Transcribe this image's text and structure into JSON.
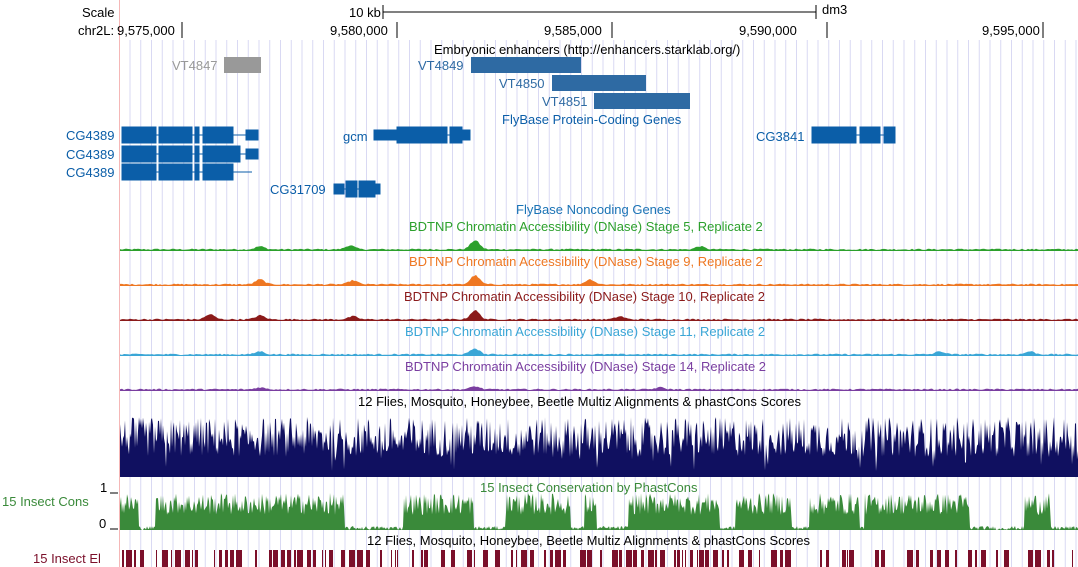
{
  "scale": {
    "label": "Scale",
    "bar_label": "10 kb",
    "assembly": "dm3",
    "chrom_label": "chr2L:",
    "positions": [
      "9,575,000",
      "9,580,000",
      "9,585,000",
      "9,590,000",
      "9,595,000"
    ]
  },
  "tracks": {
    "enhancers": {
      "title": "Embryonic enhancers (http://enhancers.starklab.org/)",
      "items": [
        "VT4847",
        "VT4849",
        "VT4850",
        "VT4851"
      ],
      "colors": {
        "gray": "#999999",
        "blue": "#2e6aa3"
      }
    },
    "protein_coding": {
      "title": "FlyBase Protein-Coding Genes",
      "color": "#0b5ea8",
      "genes": [
        "CG4389",
        "CG4389",
        "CG4389",
        "gcm",
        "CG31709",
        "CG3841"
      ]
    },
    "noncoding": {
      "title": "FlyBase Noncoding Genes",
      "color": "#1a73b5"
    },
    "dnase": [
      {
        "title": "BDTNP Chromatin Accessibility (DNase) Stage 5, Replicate 2",
        "color": "#2ca02c"
      },
      {
        "title": "BDTNP Chromatin Accessibility (DNase) Stage 9, Replicate 2",
        "color": "#ee7722"
      },
      {
        "title": "BDTNP Chromatin Accessibility (DNase) Stage 10, Replicate 2",
        "color": "#8b1a1a"
      },
      {
        "title": "BDTNP Chromatin Accessibility (DNase) Stage 11, Replicate 2",
        "color": "#3aa6d6"
      },
      {
        "title": "BDTNP Chromatin Accessibility (DNase) Stage 14, Replicate 2",
        "color": "#7a3ea0"
      }
    ],
    "multiz": {
      "title": "12 Flies, Mosquito, Honeybee, Beetle Multiz Alignments & phastCons Scores",
      "color": "#101060"
    },
    "cons": {
      "title": "15 Insect Conservation by PhastCons",
      "side_label": "15 Insect Cons",
      "max_label": "1",
      "min_label": "0",
      "color": "#3a8a3a"
    },
    "elements": {
      "title": "12 Flies, Mosquito, Honeybee, Beetle Multiz Alignments & phastCons Scores",
      "side_label": "15 Insect El",
      "color": "#7b0f2a"
    }
  }
}
